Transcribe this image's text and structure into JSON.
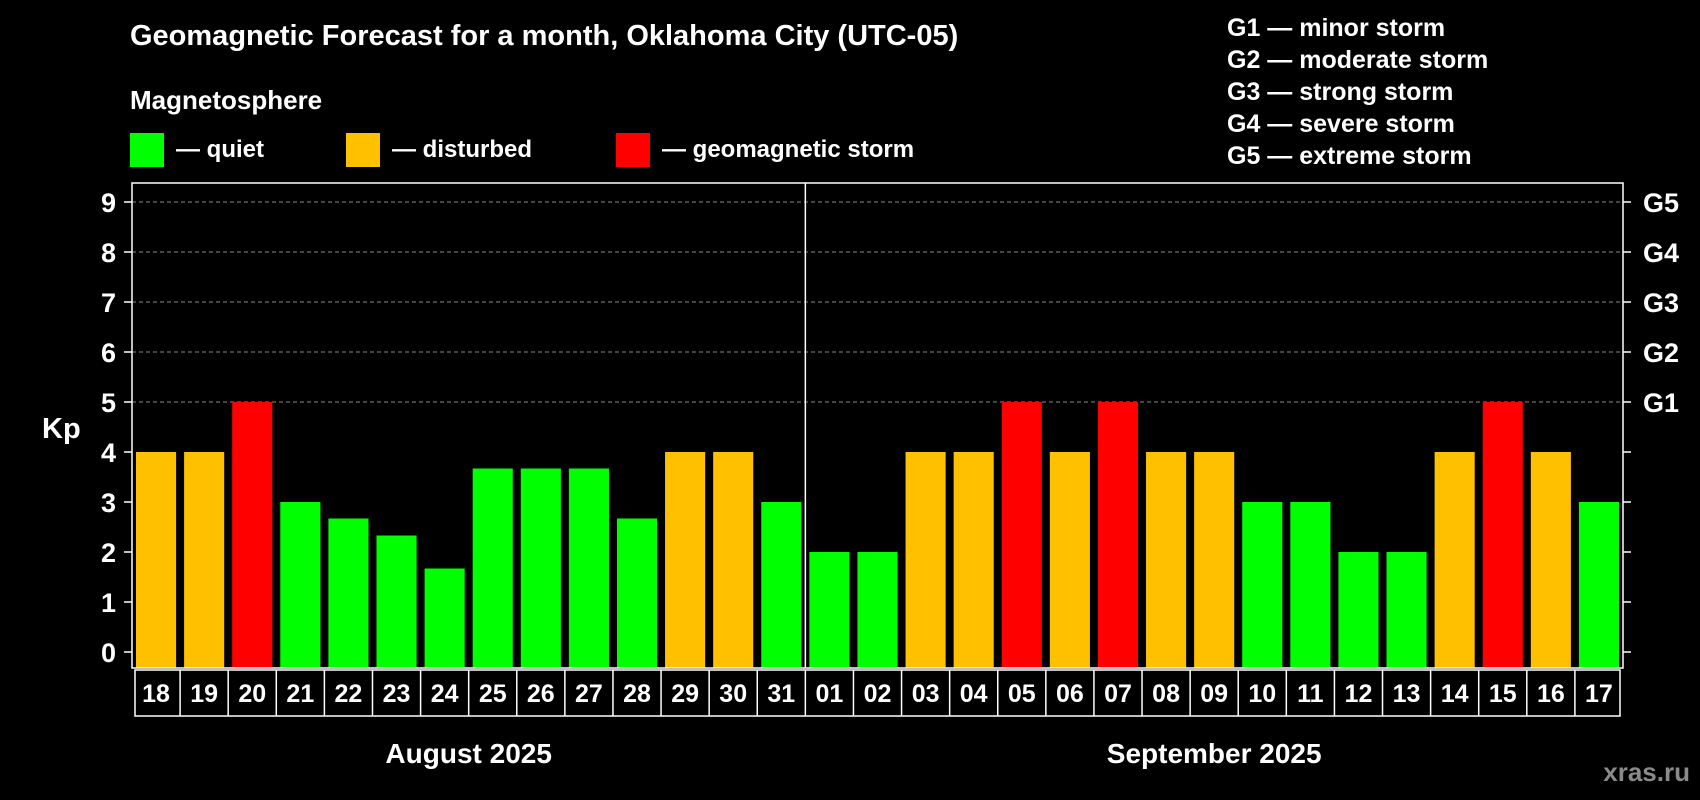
{
  "title": "Geomagnetic Forecast for a month, Oklahoma City (UTC-05)",
  "magnetosphere": {
    "title": "Magnetosphere",
    "items": [
      {
        "label": "— quiet",
        "color": "#00ff00"
      },
      {
        "label": "— disturbed",
        "color": "#ffc000"
      },
      {
        "label": "— geomagnetic storm",
        "color": "#ff0000"
      }
    ]
  },
  "g_legend": [
    "G1 — minor storm",
    "G2 — moderate storm",
    "G3 — strong storm",
    "G4 — severe storm",
    "G5 — extreme storm"
  ],
  "brand": "xras.ru",
  "chart_data": {
    "type": "bar",
    "ylabel": "Kp",
    "ylim": [
      0,
      9
    ],
    "yticks": [
      0,
      1,
      2,
      3,
      4,
      5,
      6,
      7,
      8,
      9
    ],
    "right_ticks": [
      {
        "value": 5,
        "label": "G1"
      },
      {
        "value": 6,
        "label": "G2"
      },
      {
        "value": 7,
        "label": "G3"
      },
      {
        "value": 8,
        "label": "G4"
      },
      {
        "value": 9,
        "label": "G5"
      }
    ],
    "grid": "dashed horizontal at 5-9",
    "categories": [
      "18",
      "19",
      "20",
      "21",
      "22",
      "23",
      "24",
      "25",
      "26",
      "27",
      "28",
      "29",
      "30",
      "31",
      "01",
      "02",
      "03",
      "04",
      "05",
      "06",
      "07",
      "08",
      "09",
      "10",
      "11",
      "12",
      "13",
      "14",
      "15",
      "16",
      "17"
    ],
    "values": [
      4,
      4,
      5,
      3,
      2.67,
      2.33,
      1.67,
      3.67,
      3.67,
      3.67,
      2.67,
      4,
      4,
      3,
      2,
      2,
      4,
      4,
      5,
      4,
      5,
      4,
      4,
      3,
      3,
      2,
      2,
      4,
      5,
      4,
      3
    ],
    "levels": [
      "disturbed",
      "disturbed",
      "storm",
      "quiet",
      "quiet",
      "quiet",
      "quiet",
      "quiet",
      "quiet",
      "quiet",
      "quiet",
      "disturbed",
      "disturbed",
      "quiet",
      "quiet",
      "quiet",
      "disturbed",
      "disturbed",
      "storm",
      "disturbed",
      "storm",
      "disturbed",
      "disturbed",
      "quiet",
      "quiet",
      "quiet",
      "quiet",
      "disturbed",
      "storm",
      "disturbed",
      "quiet"
    ],
    "level_colors": {
      "quiet": "#00ff00",
      "disturbed": "#ffc000",
      "storm": "#ff0000"
    },
    "months": [
      {
        "label": "August 2025",
        "start": 0,
        "count": 14
      },
      {
        "label": "September 2025",
        "start": 14,
        "count": 17
      }
    ]
  }
}
